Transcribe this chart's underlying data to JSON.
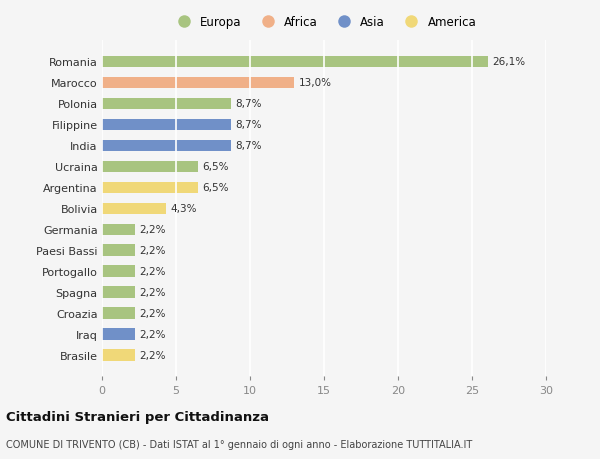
{
  "countries": [
    "Romania",
    "Marocco",
    "Polonia",
    "Filippine",
    "India",
    "Ucraina",
    "Argentina",
    "Bolivia",
    "Germania",
    "Paesi Bassi",
    "Portogallo",
    "Spagna",
    "Croazia",
    "Iraq",
    "Brasile"
  ],
  "values": [
    26.1,
    13.0,
    8.7,
    8.7,
    8.7,
    6.5,
    6.5,
    4.3,
    2.2,
    2.2,
    2.2,
    2.2,
    2.2,
    2.2,
    2.2
  ],
  "labels": [
    "26,1%",
    "13,0%",
    "8,7%",
    "8,7%",
    "8,7%",
    "6,5%",
    "6,5%",
    "4,3%",
    "2,2%",
    "2,2%",
    "2,2%",
    "2,2%",
    "2,2%",
    "2,2%",
    "2,2%"
  ],
  "continents": [
    "Europa",
    "Africa",
    "Europa",
    "Asia",
    "Asia",
    "Europa",
    "America",
    "America",
    "Europa",
    "Europa",
    "Europa",
    "Europa",
    "Europa",
    "Asia",
    "America"
  ],
  "continent_colors": {
    "Europa": "#a8c480",
    "Africa": "#f0b088",
    "Asia": "#7090c8",
    "America": "#f0d878"
  },
  "legend_order": [
    "Europa",
    "Africa",
    "Asia",
    "America"
  ],
  "title": "Cittadini Stranieri per Cittadinanza",
  "subtitle": "COMUNE DI TRIVENTO (CB) - Dati ISTAT al 1° gennaio di ogni anno - Elaborazione TUTTITALIA.IT",
  "xlim": [
    0,
    30
  ],
  "xticks": [
    0,
    5,
    10,
    15,
    20,
    25,
    30
  ],
  "background_color": "#f5f5f5",
  "grid_color": "#ffffff",
  "bar_height": 0.55
}
